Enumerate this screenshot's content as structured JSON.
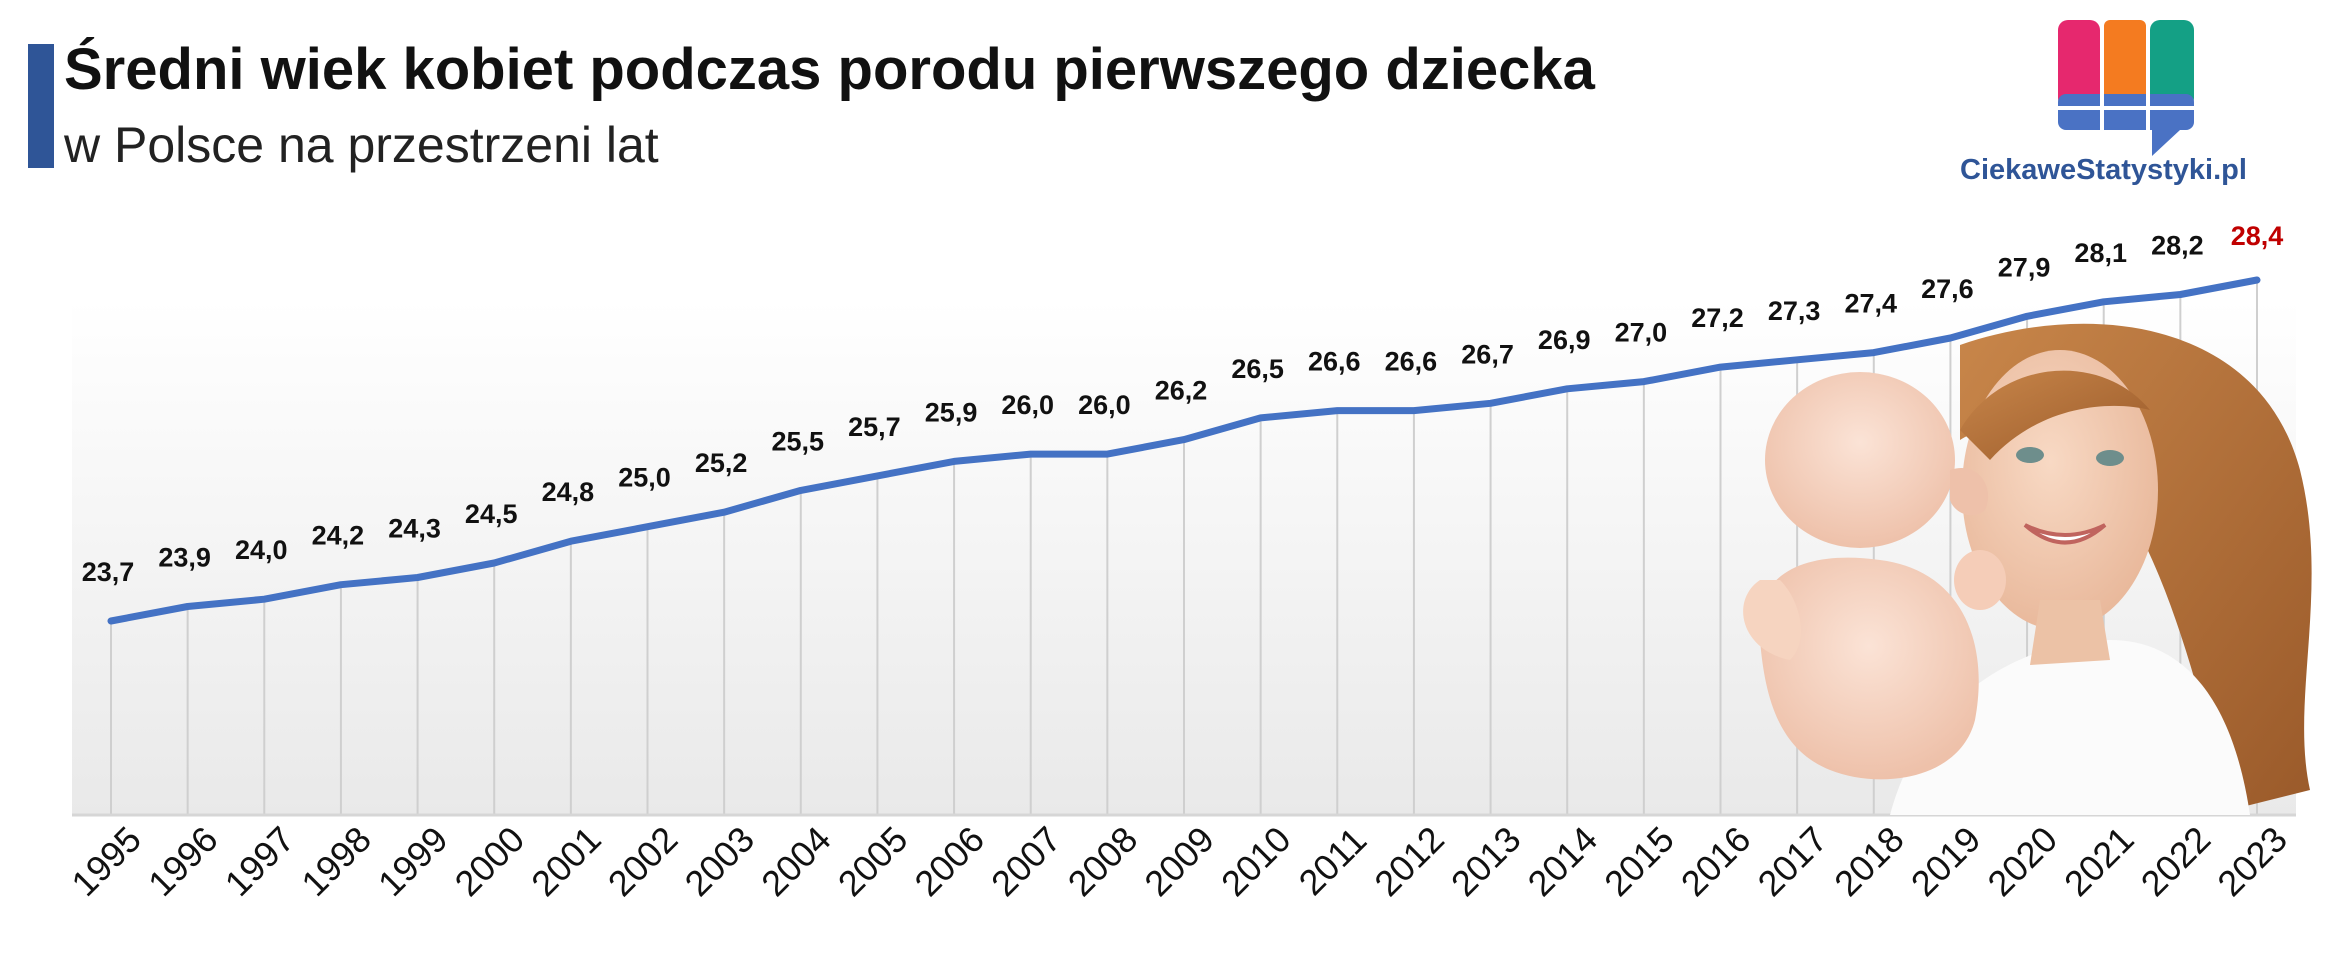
{
  "header": {
    "title": "Średni wiek kobiet podczas porodu pierwszego dziecka",
    "subtitle": "w Polsce na przestrzeni lat"
  },
  "logo": {
    "text": "CiekaweStatystyki.pl"
  },
  "colors": {
    "accent_bar": "#2f5597",
    "line": "#4472c4",
    "highlight_label": "#c00000",
    "logo_pink": "#e6286e",
    "logo_orange": "#f47b20",
    "logo_teal": "#14a085",
    "logo_blue": "#4a72c4"
  },
  "chart_data": {
    "type": "line",
    "x": [
      "1995",
      "1996",
      "1997",
      "1998",
      "1999",
      "2000",
      "2001",
      "2002",
      "2003",
      "2004",
      "2005",
      "2006",
      "2007",
      "2008",
      "2009",
      "2010",
      "2011",
      "2012",
      "2013",
      "2014",
      "2015",
      "2016",
      "2017",
      "2018",
      "2019",
      "2020",
      "2021",
      "2022",
      "2023"
    ],
    "series": [
      {
        "values": [
          23.7,
          23.9,
          24.0,
          24.2,
          24.3,
          24.5,
          24.8,
          25.0,
          25.2,
          25.5,
          25.7,
          25.9,
          26.0,
          26.0,
          26.2,
          26.5,
          26.6,
          26.6,
          26.7,
          26.9,
          27.0,
          27.2,
          27.3,
          27.4,
          27.6,
          27.9,
          28.1,
          28.2,
          28.4
        ],
        "labels": [
          "23,7",
          "23,9",
          "24,0",
          "24,2",
          "24,3",
          "24,5",
          "24,8",
          "25,0",
          "25,2",
          "25,5",
          "25,7",
          "25,9",
          "26,0",
          "26,0",
          "26,2",
          "26,5",
          "26,6",
          "26,6",
          "26,7",
          "26,9",
          "27,0",
          "27,2",
          "27,3",
          "27,4",
          "27,6",
          "27,9",
          "28,1",
          "28,2",
          "28,4"
        ]
      }
    ],
    "highlight_last": true,
    "grid": "vertical",
    "legend": "none"
  }
}
